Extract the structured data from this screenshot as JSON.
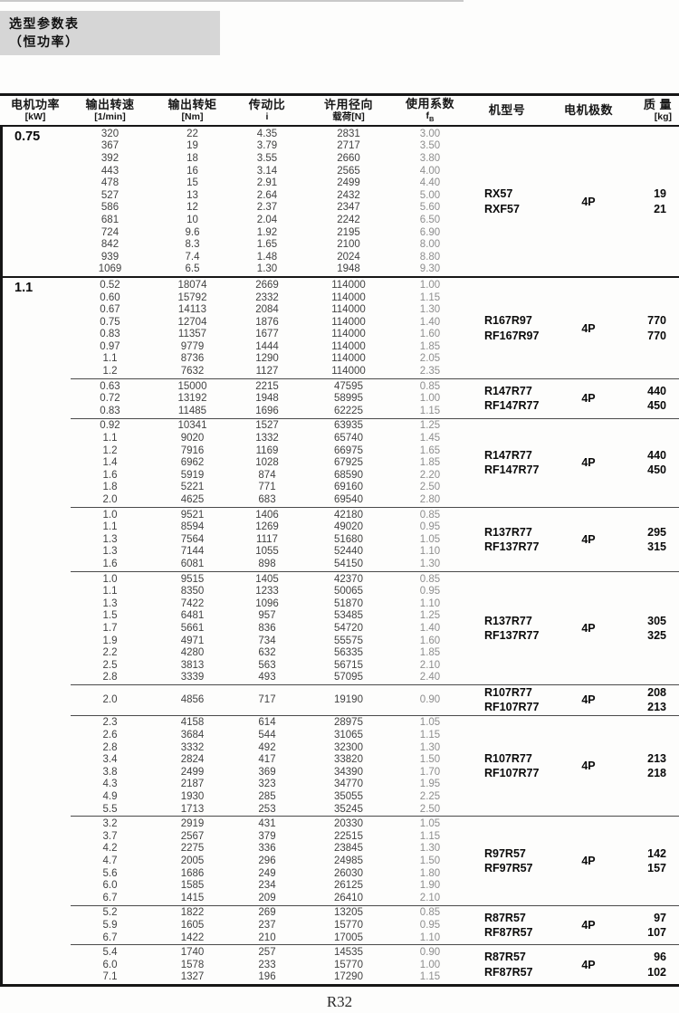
{
  "page": {
    "title_line1": "选型参数表",
    "title_line2": "（恒功率）",
    "footer": "R32"
  },
  "header": {
    "power_l1": "电机功率",
    "power_l2": "[kW]",
    "speed_l1": "输出转速",
    "speed_l2": "[1/min]",
    "torque_l1": "输出转矩",
    "torque_l2": "[Nm]",
    "ratio_l1": "传动比",
    "ratio_l2": "i",
    "radial_l1": "许用径向",
    "radial_l2": "载荷[N]",
    "sf_l1": "使用系数",
    "sf_main": "f",
    "sf_sub": "B",
    "model": "机型号",
    "poles": "电机极数",
    "mass_l1": "质 量",
    "mass_l2": "[kg]"
  },
  "table": {
    "columns": [
      "输出转速 [1/min]",
      "输出转矩 [Nm]",
      "传动比 i",
      "许用径向载荷[N]",
      "使用系数 fB"
    ],
    "groups": [
      {
        "power": "0.75",
        "blocks": [
          {
            "models": [
              "RX57",
              "RXF57"
            ],
            "poles": "4P",
            "masses": [
              "19",
              "21"
            ],
            "rows": [
              [
                "320",
                "22",
                "4.35",
                "2831",
                "3.00"
              ],
              [
                "367",
                "19",
                "3.79",
                "2717",
                "3.50"
              ],
              [
                "392",
                "18",
                "3.55",
                "2660",
                "3.80"
              ],
              [
                "443",
                "16",
                "3.14",
                "2565",
                "4.00"
              ],
              [
                "478",
                "15",
                "2.91",
                "2499",
                "4.40"
              ],
              [
                "527",
                "13",
                "2.64",
                "2432",
                "5.00"
              ],
              [
                "586",
                "12",
                "2.37",
                "2347",
                "5.60"
              ],
              [
                "681",
                "10",
                "2.04",
                "2242",
                "6.50"
              ],
              [
                "724",
                "9.6",
                "1.92",
                "2195",
                "6.90"
              ],
              [
                "842",
                "8.3",
                "1.65",
                "2100",
                "8.00"
              ],
              [
                "939",
                "7.4",
                "1.48",
                "2024",
                "8.80"
              ],
              [
                "1069",
                "6.5",
                "1.30",
                "1948",
                "9.30"
              ]
            ]
          }
        ]
      },
      {
        "power": "1.1",
        "blocks": [
          {
            "models": [
              "R167R97",
              "RF167R97"
            ],
            "poles": "4P",
            "masses": [
              "770",
              "770"
            ],
            "rows": [
              [
                "0.52",
                "18074",
                "2669",
                "114000",
                "1.00"
              ],
              [
                "0.60",
                "15792",
                "2332",
                "114000",
                "1.15"
              ],
              [
                "0.67",
                "14113",
                "2084",
                "114000",
                "1.30"
              ],
              [
                "0.75",
                "12704",
                "1876",
                "114000",
                "1.40"
              ],
              [
                "0.83",
                "11357",
                "1677",
                "114000",
                "1.60"
              ],
              [
                "0.97",
                "9779",
                "1444",
                "114000",
                "1.85"
              ],
              [
                "1.1",
                "8736",
                "1290",
                "114000",
                "2.05"
              ],
              [
                "1.2",
                "7632",
                "1127",
                "114000",
                "2.35"
              ]
            ]
          },
          {
            "models": [
              "R147R77",
              "RF147R77"
            ],
            "poles": "4P",
            "masses": [
              "440",
              "450"
            ],
            "rows": [
              [
                "0.63",
                "15000",
                "2215",
                "47595",
                "0.85"
              ],
              [
                "0.72",
                "13192",
                "1948",
                "58995",
                "1.00"
              ],
              [
                "0.83",
                "11485",
                "1696",
                "62225",
                "1.15"
              ]
            ]
          },
          {
            "models": [
              "R147R77",
              "RF147R77"
            ],
            "poles": "4P",
            "masses": [
              "440",
              "450"
            ],
            "rows": [
              [
                "0.92",
                "10341",
                "1527",
                "63935",
                "1.25"
              ],
              [
                "1.1",
                "9020",
                "1332",
                "65740",
                "1.45"
              ],
              [
                "1.2",
                "7916",
                "1169",
                "66975",
                "1.65"
              ],
              [
                "1.4",
                "6962",
                "1028",
                "67925",
                "1.85"
              ],
              [
                "1.6",
                "5919",
                "874",
                "68590",
                "2.20"
              ],
              [
                "1.8",
                "5221",
                "771",
                "69160",
                "2.50"
              ],
              [
                "2.0",
                "4625",
                "683",
                "69540",
                "2.80"
              ]
            ]
          },
          {
            "models": [
              "R137R77",
              "RF137R77"
            ],
            "poles": "4P",
            "masses": [
              "295",
              "315"
            ],
            "rows": [
              [
                "1.0",
                "9521",
                "1406",
                "42180",
                "0.85"
              ],
              [
                "1.1",
                "8594",
                "1269",
                "49020",
                "0.95"
              ],
              [
                "1.3",
                "7564",
                "1117",
                "51680",
                "1.05"
              ],
              [
                "1.3",
                "7144",
                "1055",
                "52440",
                "1.10"
              ],
              [
                "1.6",
                "6081",
                "898",
                "54150",
                "1.30"
              ]
            ]
          },
          {
            "models": [
              "R137R77",
              "RF137R77"
            ],
            "poles": "4P",
            "masses": [
              "305",
              "325"
            ],
            "rows": [
              [
                "1.0",
                "9515",
                "1405",
                "42370",
                "0.85"
              ],
              [
                "1.1",
                "8350",
                "1233",
                "50065",
                "0.95"
              ],
              [
                "1.3",
                "7422",
                "1096",
                "51870",
                "1.10"
              ],
              [
                "1.5",
                "6481",
                "957",
                "53485",
                "1.25"
              ],
              [
                "1.7",
                "5661",
                "836",
                "54720",
                "1.40"
              ],
              [
                "1.9",
                "4971",
                "734",
                "55575",
                "1.60"
              ],
              [
                "2.2",
                "4280",
                "632",
                "56335",
                "1.85"
              ],
              [
                "2.5",
                "3813",
                "563",
                "56715",
                "2.10"
              ],
              [
                "2.8",
                "3339",
                "493",
                "57095",
                "2.40"
              ]
            ]
          },
          {
            "models": [
              "R107R77",
              "RF107R77"
            ],
            "poles": "4P",
            "masses": [
              "208",
              "213"
            ],
            "rows": [
              [
                "2.0",
                "4856",
                "717",
                "19190",
                "0.90"
              ]
            ]
          },
          {
            "models": [
              "R107R77",
              "RF107R77"
            ],
            "poles": "4P",
            "masses": [
              "213",
              "218"
            ],
            "rows": [
              [
                "2.3",
                "4158",
                "614",
                "28975",
                "1.05"
              ],
              [
                "2.6",
                "3684",
                "544",
                "31065",
                "1.15"
              ],
              [
                "2.8",
                "3332",
                "492",
                "32300",
                "1.30"
              ],
              [
                "3.4",
                "2824",
                "417",
                "33820",
                "1.50"
              ],
              [
                "3.8",
                "2499",
                "369",
                "34390",
                "1.70"
              ],
              [
                "4.3",
                "2187",
                "323",
                "34770",
                "1.95"
              ],
              [
                "4.9",
                "1930",
                "285",
                "35055",
                "2.25"
              ],
              [
                "5.5",
                "1713",
                "253",
                "35245",
                "2.50"
              ]
            ]
          },
          {
            "models": [
              "R97R57",
              "RF97R57"
            ],
            "poles": "4P",
            "masses": [
              "142",
              "157"
            ],
            "rows": [
              [
                "3.2",
                "2919",
                "431",
                "20330",
                "1.05"
              ],
              [
                "3.7",
                "2567",
                "379",
                "22515",
                "1.15"
              ],
              [
                "4.2",
                "2275",
                "336",
                "23845",
                "1.30"
              ],
              [
                "4.7",
                "2005",
                "296",
                "24985",
                "1.50"
              ],
              [
                "5.6",
                "1686",
                "249",
                "26030",
                "1.80"
              ],
              [
                "6.0",
                "1585",
                "234",
                "26125",
                "1.90"
              ],
              [
                "6.7",
                "1415",
                "209",
                "26410",
                "2.10"
              ]
            ]
          },
          {
            "models": [
              "R87R57",
              "RF87R57"
            ],
            "poles": "4P",
            "masses": [
              "97",
              "107"
            ],
            "rows": [
              [
                "5.2",
                "1822",
                "269",
                "13205",
                "0.85"
              ],
              [
                "5.9",
                "1605",
                "237",
                "15770",
                "0.95"
              ],
              [
                "6.7",
                "1422",
                "210",
                "17005",
                "1.10"
              ]
            ]
          },
          {
            "models": [
              "R87R57",
              "RF87R57"
            ],
            "poles": "4P",
            "masses": [
              "96",
              "102"
            ],
            "rows": [
              [
                "5.4",
                "1740",
                "257",
                "14535",
                "0.90"
              ],
              [
                "6.0",
                "1578",
                "233",
                "15770",
                "1.00"
              ],
              [
                "7.1",
                "1327",
                "196",
                "17290",
                "1.15"
              ]
            ]
          }
        ]
      }
    ]
  }
}
